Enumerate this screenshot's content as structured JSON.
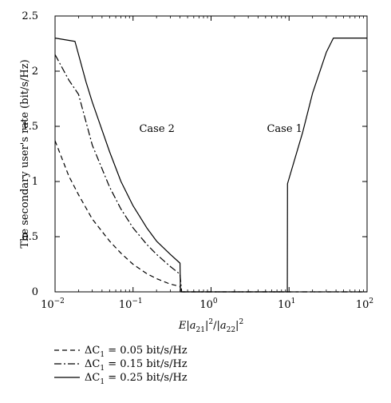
{
  "chart_data": {
    "type": "line",
    "xscale": "log",
    "xlim": [
      0.01,
      100
    ],
    "ylim": [
      0,
      2.5
    ],
    "grid": false,
    "legend_position": "bottom-left (below plot)",
    "xlabel": "E|a21|^2/|a22|^2",
    "ylabel": "The secondary user's rate (bit/s/Hz)",
    "x_ticks": [
      {
        "value": 0.01,
        "base": "10",
        "exp": "−2"
      },
      {
        "value": 0.1,
        "base": "10",
        "exp": "−1"
      },
      {
        "value": 1,
        "base": "10",
        "exp": "0"
      },
      {
        "value": 10,
        "base": "10",
        "exp": "1"
      },
      {
        "value": 100,
        "base": "10",
        "exp": "2"
      }
    ],
    "y_ticks": [
      {
        "value": 0,
        "label": "0"
      },
      {
        "value": 0.5,
        "label": "0.5"
      },
      {
        "value": 1,
        "label": "1"
      },
      {
        "value": 1.5,
        "label": "1.5"
      },
      {
        "value": 2,
        "label": "2"
      },
      {
        "value": 2.5,
        "label": "2.5"
      }
    ],
    "annotations": [
      {
        "text": "Case 2",
        "x": 0.12,
        "y": 1.5
      },
      {
        "text": "Case 1",
        "x": 5.2,
        "y": 1.5
      }
    ],
    "series": [
      {
        "name": "ΔC1 = 0.05 bit/s/Hz",
        "dash": "dashed",
        "points": [
          [
            0.01,
            1.37
          ],
          [
            0.015,
            1.05
          ],
          [
            0.02,
            0.88
          ],
          [
            0.03,
            0.66
          ],
          [
            0.05,
            0.46
          ],
          [
            0.07,
            0.35
          ],
          [
            0.1,
            0.25
          ],
          [
            0.15,
            0.165
          ],
          [
            0.2,
            0.12
          ],
          [
            0.3,
            0.07
          ],
          [
            0.4,
            0.05
          ],
          [
            0.41,
            0.0
          ],
          [
            100,
            0.0
          ]
        ]
      },
      {
        "name": "ΔC1 = 0.15 bit/s/Hz",
        "dash": "dashdot",
        "points": [
          [
            0.01,
            2.15
          ],
          [
            0.015,
            1.92
          ],
          [
            0.02,
            1.79
          ],
          [
            0.03,
            1.33
          ],
          [
            0.05,
            0.95
          ],
          [
            0.07,
            0.75
          ],
          [
            0.1,
            0.58
          ],
          [
            0.15,
            0.43
          ],
          [
            0.2,
            0.34
          ],
          [
            0.3,
            0.23
          ],
          [
            0.4,
            0.16
          ],
          [
            0.42,
            0.0
          ],
          [
            100,
            0.0
          ]
        ]
      },
      {
        "name": "ΔC1 = 0.25 bit/s/Hz",
        "dash": "solid",
        "points": [
          [
            0.01,
            2.3
          ],
          [
            0.018,
            2.27
          ],
          [
            0.025,
            1.9
          ],
          [
            0.03,
            1.72
          ],
          [
            0.05,
            1.27
          ],
          [
            0.07,
            1.0
          ],
          [
            0.1,
            0.78
          ],
          [
            0.15,
            0.58
          ],
          [
            0.2,
            0.46
          ],
          [
            0.3,
            0.34
          ],
          [
            0.4,
            0.26
          ],
          [
            0.405,
            0.0
          ],
          [
            9.5,
            0.0
          ],
          [
            9.55,
            0.98
          ],
          [
            15,
            1.45
          ],
          [
            20,
            1.8
          ],
          [
            30,
            2.17
          ],
          [
            37,
            2.3
          ],
          [
            100,
            2.3
          ]
        ]
      }
    ],
    "legend": [
      {
        "series_index": 0,
        "prefix": "ΔC",
        "sub": "1",
        "suffix": " = 0.05 bit/s/Hz"
      },
      {
        "series_index": 1,
        "prefix": "ΔC",
        "sub": "1",
        "suffix": " = 0.15 bit/s/Hz"
      },
      {
        "series_index": 2,
        "prefix": "ΔC",
        "sub": "1",
        "suffix": " = 0.25 bit/s/Hz"
      }
    ]
  }
}
